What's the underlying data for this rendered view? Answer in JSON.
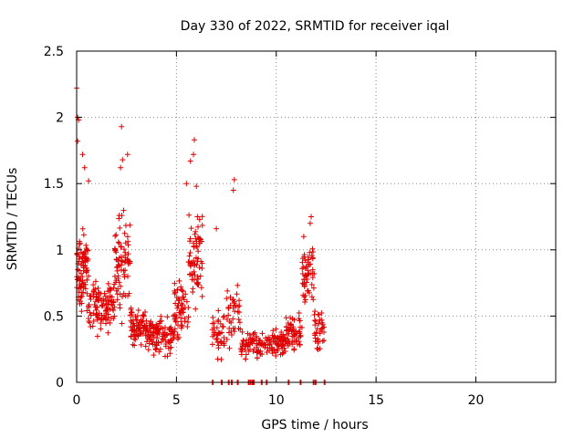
{
  "chart_data": {
    "type": "scatter",
    "title": "Day 330 of 2022, SRMTID for receiver iqal",
    "xlabel": "GPS time / hours",
    "ylabel": "SRMTID / TECUs",
    "xlim": [
      0,
      24
    ],
    "ylim": [
      0,
      2.5
    ],
    "xticks": [
      "0",
      "5",
      "10",
      "15",
      "20"
    ],
    "yticks": [
      "0",
      "0.5",
      "1",
      "1.5",
      "2",
      "2.5"
    ],
    "grid": true,
    "marker": "+",
    "color": "#e00000",
    "clusters": [
      {
        "t0": 0.0,
        "t1": 0.6,
        "n": 90,
        "mid": 0.85,
        "spread": 0.4
      },
      {
        "t0": 0.6,
        "t1": 1.9,
        "n": 110,
        "mid": 0.58,
        "spread": 0.25
      },
      {
        "t0": 1.9,
        "t1": 2.7,
        "n": 80,
        "mid": 0.9,
        "spread": 0.45
      },
      {
        "t0": 2.7,
        "t1": 3.6,
        "n": 80,
        "mid": 0.42,
        "spread": 0.2
      },
      {
        "t0": 3.6,
        "t1": 4.9,
        "n": 100,
        "mid": 0.35,
        "spread": 0.18
      },
      {
        "t0": 4.9,
        "t1": 5.6,
        "n": 60,
        "mid": 0.55,
        "spread": 0.3
      },
      {
        "t0": 5.6,
        "t1": 6.3,
        "n": 70,
        "mid": 0.95,
        "spread": 0.4
      },
      {
        "t0": 6.8,
        "t1": 7.4,
        "n": 40,
        "mid": 0.35,
        "spread": 0.22
      },
      {
        "t0": 7.5,
        "t1": 8.2,
        "n": 40,
        "mid": 0.5,
        "spread": 0.35
      },
      {
        "t0": 8.2,
        "t1": 9.0,
        "n": 45,
        "mid": 0.28,
        "spread": 0.12
      },
      {
        "t0": 9.0,
        "t1": 9.8,
        "n": 45,
        "mid": 0.27,
        "spread": 0.12
      },
      {
        "t0": 9.8,
        "t1": 10.5,
        "n": 55,
        "mid": 0.3,
        "spread": 0.12
      },
      {
        "t0": 10.5,
        "t1": 11.3,
        "n": 60,
        "mid": 0.38,
        "spread": 0.16
      },
      {
        "t0": 11.3,
        "t1": 11.9,
        "n": 55,
        "mid": 0.8,
        "spread": 0.3
      },
      {
        "t0": 11.9,
        "t1": 12.4,
        "n": 35,
        "mid": 0.42,
        "spread": 0.2
      }
    ],
    "peaks": [
      {
        "x": 0.0,
        "y": 2.22
      },
      {
        "x": 0.05,
        "y": 2.0
      },
      {
        "x": 0.1,
        "y": 1.98
      },
      {
        "x": 0.05,
        "y": 1.82
      },
      {
        "x": 0.3,
        "y": 1.72
      },
      {
        "x": 0.4,
        "y": 1.62
      },
      {
        "x": 0.6,
        "y": 1.52
      },
      {
        "x": 2.25,
        "y": 1.93
      },
      {
        "x": 2.55,
        "y": 1.72
      },
      {
        "x": 2.3,
        "y": 1.68
      },
      {
        "x": 2.2,
        "y": 1.62
      },
      {
        "x": 5.9,
        "y": 1.83
      },
      {
        "x": 5.85,
        "y": 1.72
      },
      {
        "x": 5.7,
        "y": 1.67
      },
      {
        "x": 5.5,
        "y": 1.5
      },
      {
        "x": 6.0,
        "y": 1.48
      },
      {
        "x": 7.9,
        "y": 1.53
      },
      {
        "x": 7.85,
        "y": 1.45
      },
      {
        "x": 7.0,
        "y": 1.16
      },
      {
        "x": 11.75,
        "y": 1.25
      },
      {
        "x": 11.7,
        "y": 1.2
      }
    ],
    "zero_points": [
      6.8,
      7.25,
      7.6,
      7.75,
      8.05,
      8.6,
      8.7,
      8.8,
      8.85,
      9.25,
      9.5,
      10.6,
      11.2,
      11.85,
      11.95,
      12.4
    ]
  }
}
